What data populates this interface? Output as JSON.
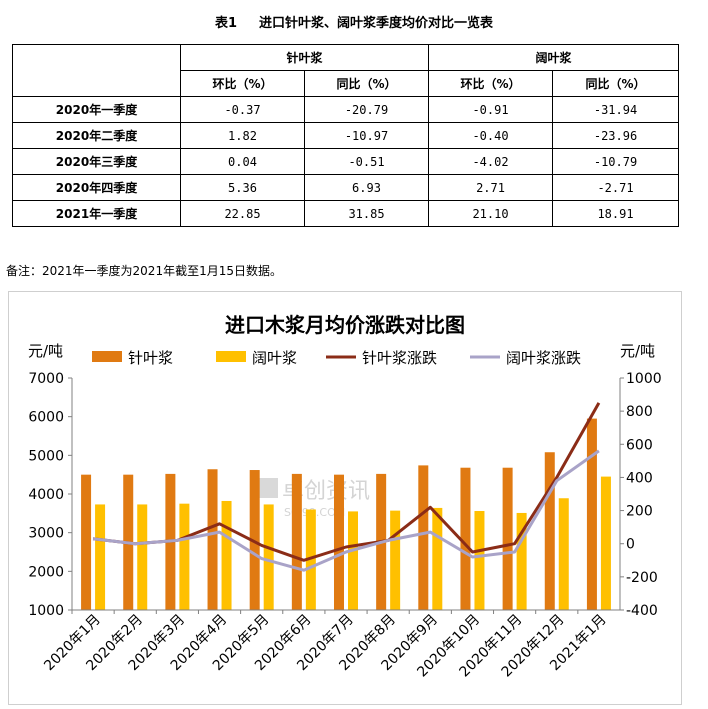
{
  "table": {
    "title_num": "表1",
    "title": "进口针叶浆、阔叶浆季度均价对比一览表",
    "groups": [
      "针叶浆",
      "阔叶浆"
    ],
    "subheaders": [
      "环比（%）",
      "同比（%）",
      "环比（%）",
      "同比（%）"
    ],
    "rows": [
      {
        "label": "2020年一季度",
        "values": [
          "-0.37",
          "-20.79",
          "-0.91",
          "-31.94"
        ]
      },
      {
        "label": "2020年二季度",
        "values": [
          "1.82",
          "-10.97",
          "-0.40",
          "-23.96"
        ]
      },
      {
        "label": "2020年三季度",
        "values": [
          "0.04",
          "-0.51",
          "-4.02",
          "-10.79"
        ]
      },
      {
        "label": "2020年四季度",
        "values": [
          "5.36",
          "6.93",
          "2.71",
          "-2.71"
        ]
      },
      {
        "label": "2021年一季度",
        "values": [
          "22.85",
          "31.85",
          "21.10",
          "18.91"
        ]
      }
    ],
    "note": "备注：2021年一季度为2021年截至1月15日数据。"
  },
  "chart_data": {
    "type": "bar",
    "title": "进口木浆月均价涨跌对比图",
    "ylabel_left": "元/吨",
    "ylabel_right": "元/吨",
    "ylim_left": [
      1000,
      7000
    ],
    "yticks_left": [
      1000,
      2000,
      3000,
      4000,
      5000,
      6000,
      7000
    ],
    "ylim_right": [
      -400,
      1000
    ],
    "yticks_right": [
      -400,
      -200,
      0,
      200,
      400,
      600,
      800,
      1000
    ],
    "grid": false,
    "legend_position": "top",
    "categories": [
      "2020年1月",
      "2020年2月",
      "2020年3月",
      "2020年4月",
      "2020年5月",
      "2020年6月",
      "2020年7月",
      "2020年8月",
      "2020年9月",
      "2020年10月",
      "2020年11月",
      "2020年12月",
      "2021年1月"
    ],
    "series": [
      {
        "name": "针叶浆",
        "kind": "bar",
        "axis": "left",
        "color": "#E07A12",
        "values": [
          4500,
          4500,
          4520,
          4640,
          4620,
          4520,
          4500,
          4520,
          4740,
          4680,
          4680,
          5080,
          5950
        ]
      },
      {
        "name": "阔叶浆",
        "kind": "bar",
        "axis": "left",
        "color": "#FFC000",
        "values": [
          3730,
          3730,
          3750,
          3820,
          3730,
          3600,
          3550,
          3570,
          3640,
          3560,
          3510,
          3890,
          4450
        ]
      },
      {
        "name": "针叶浆涨跌",
        "kind": "line",
        "axis": "right",
        "color": "#8B2C17",
        "values": [
          30,
          0,
          20,
          120,
          -10,
          -100,
          -20,
          20,
          220,
          -50,
          0,
          400,
          850
        ]
      },
      {
        "name": "阔叶浆涨跌",
        "kind": "line",
        "axis": "right",
        "color": "#A9A3C8",
        "values": [
          30,
          0,
          20,
          70,
          -90,
          -160,
          -50,
          20,
          70,
          -80,
          -50,
          380,
          560
        ]
      }
    ],
    "watermark": "卓创资讯",
    "watermark_sub": "SCI99.COM"
  }
}
